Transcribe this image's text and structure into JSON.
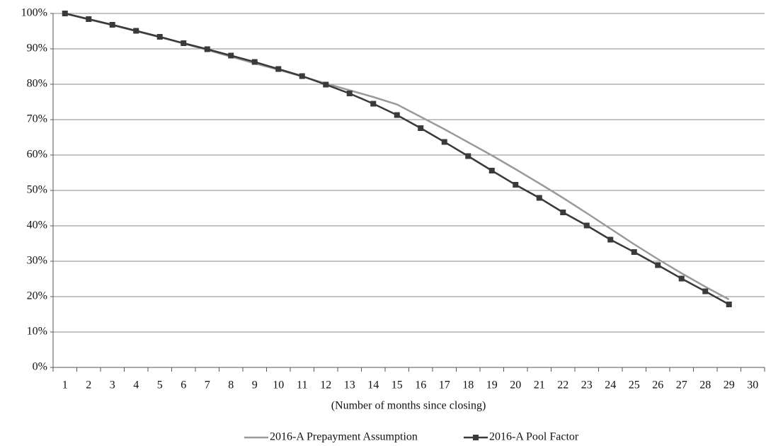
{
  "chart_data": {
    "type": "line",
    "x_label": "(Number of months since closing)",
    "categories": [
      1,
      2,
      3,
      4,
      5,
      6,
      7,
      8,
      9,
      10,
      11,
      12,
      13,
      14,
      15,
      16,
      17,
      18,
      19,
      20,
      21,
      22,
      23,
      24,
      25,
      26,
      27,
      28,
      29,
      30
    ],
    "series": [
      {
        "name": "2016-A Prepayment Assumption",
        "color": "#9a9a9a",
        "marker": false,
        "values": [
          100,
          98.3,
          96.7,
          95.0,
          93.3,
          91.5,
          89.7,
          87.8,
          85.9,
          84.1,
          82.2,
          80.2,
          78.3,
          76.4,
          74.3,
          70.8,
          67.3,
          63.6,
          59.9,
          56.0,
          52.0,
          47.9,
          43.6,
          39.2,
          34.8,
          30.6,
          26.6,
          22.8,
          19.2,
          null
        ]
      },
      {
        "name": "2016-A Pool Factor",
        "color": "#3a3a3a",
        "marker": true,
        "values": [
          100,
          98.4,
          96.8,
          95.1,
          93.4,
          91.6,
          89.9,
          88.1,
          86.3,
          84.3,
          82.3,
          79.9,
          77.4,
          74.5,
          71.3,
          67.6,
          63.7,
          59.7,
          55.6,
          51.6,
          47.9,
          43.8,
          40.1,
          36.1,
          32.6,
          28.9,
          25.1,
          21.5,
          17.8,
          null
        ]
      }
    ],
    "ylim": [
      0,
      100
    ],
    "yticks": [
      {
        "value": 0,
        "label": "0%"
      },
      {
        "value": 10,
        "label": "10%"
      },
      {
        "value": 20,
        "label": "20%"
      },
      {
        "value": 30,
        "label": "30%"
      },
      {
        "value": 40,
        "label": "40%"
      },
      {
        "value": 50,
        "label": "50%"
      },
      {
        "value": 60,
        "label": "60%"
      },
      {
        "value": 70,
        "label": "70%"
      },
      {
        "value": 80,
        "label": "80%"
      },
      {
        "value": 90,
        "label": "90%"
      },
      {
        "value": 100,
        "label": "100%"
      }
    ],
    "grid": true,
    "legend": "bottom"
  }
}
